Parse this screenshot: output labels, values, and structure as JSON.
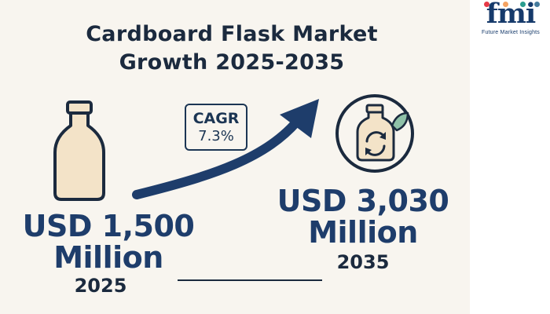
{
  "title": {
    "line1": "Cardboard Flask Market",
    "line2": "Growth 2025-2035"
  },
  "logo": {
    "wordmark": "fmi",
    "tagline": "Future Market Insights",
    "dot_colors": [
      "#e63946",
      "#f4a261",
      "#2a9d8f",
      "#457b9d"
    ]
  },
  "start": {
    "value_line1": "USD 1,500",
    "value_line2": "Million",
    "year": "2025"
  },
  "cagr": {
    "label": "CAGR",
    "value": "7.3%"
  },
  "end": {
    "value_line1": "USD 3,030",
    "value_line2": "Million",
    "year": "2035"
  },
  "icons": {
    "start": "bottle-icon",
    "growth": "growth-arrow",
    "end": "recyclable-flask-icon"
  },
  "colors": {
    "navy": "#1e3d6b",
    "dark": "#1b2a3e",
    "bottle": "#f3e3c8",
    "leaf": "#8fc1a8",
    "background": "#f8f5ef"
  }
}
